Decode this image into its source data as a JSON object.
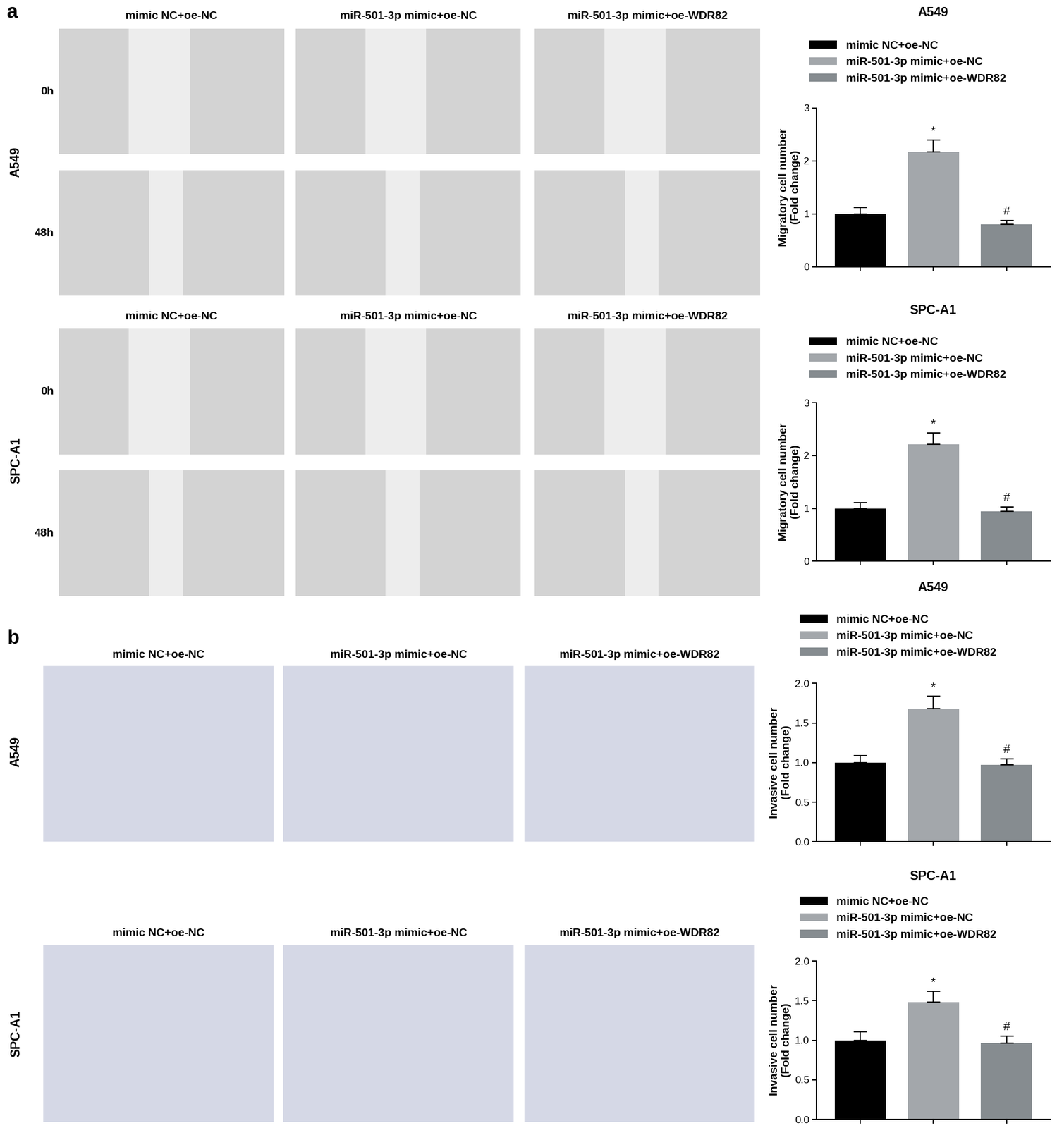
{
  "figure_panels": [
    {
      "label": "a",
      "groups": [
        {
          "cell_line": "A549",
          "columns": [
            "mimic NC+oe-NC",
            "miR-501-3p mimic+oe-NC",
            "miR-501-3p mimic+oe-WDR82"
          ],
          "rows": [
            "0h",
            "48h"
          ]
        },
        {
          "cell_line": "SPC-A1",
          "columns": [
            "mimic NC+oe-NC",
            "miR-501-3p mimic+oe-NC",
            "miR-501-3p mimic+oe-WDR82"
          ],
          "rows": [
            "0h",
            "48h"
          ]
        }
      ]
    },
    {
      "label": "b",
      "groups": [
        {
          "cell_line": "A549",
          "columns": [
            "mimic NC+oe-NC",
            "miR-501-3p mimic+oe-NC",
            "miR-501-3p mimic+oe-WDR82"
          ]
        },
        {
          "cell_line": "SPC-A1",
          "columns": [
            "mimic NC+oe-NC",
            "miR-501-3p mimic+oe-NC",
            "miR-501-3p mimic+oe-WDR82"
          ]
        }
      ]
    }
  ],
  "chart_data": [
    {
      "type": "bar",
      "title": "A549",
      "y_label": "Migratory cell number\n(Fold change)",
      "categories": [
        "mimic NC+oe-NC",
        "miR-501-3p mimic+oe-NC",
        "miR-501-3p mimic+oe-WDR82"
      ],
      "values": [
        1.0,
        2.17,
        0.8
      ],
      "errors": [
        0.12,
        0.22,
        0.08
      ],
      "annotations": [
        null,
        "*",
        "#"
      ],
      "colors": [
        "#000000",
        "#a3a7ab",
        "#868c90"
      ],
      "ylim": [
        0,
        3
      ],
      "yticks": [
        0,
        1,
        2,
        3
      ],
      "legend": "upper left",
      "tick_labels": "y"
    },
    {
      "type": "bar",
      "title": "SPC-A1",
      "y_label": "Migratory cell number\n(Fold change)",
      "categories": [
        "mimic NC+oe-NC",
        "miR-501-3p mimic+oe-NC",
        "miR-501-3p mimic+oe-WDR82"
      ],
      "values": [
        1.0,
        2.21,
        0.94
      ],
      "errors": [
        0.11,
        0.22,
        0.09
      ],
      "annotations": [
        null,
        "*",
        "#"
      ],
      "colors": [
        "#000000",
        "#a3a7ab",
        "#868c90"
      ],
      "ylim": [
        0,
        3
      ],
      "yticks": [
        0,
        1,
        2,
        3
      ],
      "legend": "upper left",
      "tick_labels": "y"
    },
    {
      "type": "bar",
      "title": "A549",
      "y_label": "Invasive cell number\n(Fold change)",
      "categories": [
        "mimic NC+oe-NC",
        "miR-501-3p mimic+oe-NC",
        "miR-501-3p mimic+oe-WDR82"
      ],
      "values": [
        1.0,
        1.68,
        0.97
      ],
      "errors": [
        0.09,
        0.16,
        0.08
      ],
      "annotations": [
        null,
        "*",
        "#"
      ],
      "colors": [
        "#000000",
        "#a3a7ab",
        "#868c90"
      ],
      "ylim": [
        0,
        2
      ],
      "yticks": [
        {
          "value": 0,
          "label": "0.0"
        },
        0.5,
        {
          "value": 1,
          "label": "1.0"
        },
        1.5,
        {
          "value": 2,
          "label": "2.0"
        }
      ],
      "legend": "upper left",
      "tick_labels": "y"
    },
    {
      "type": "bar",
      "title": "SPC-A1",
      "y_label": "Invasive cell number\n(Fold change)",
      "categories": [
        "mimic NC+oe-NC",
        "miR-501-3p mimic+oe-NC",
        "miR-501-3p mimic+oe-WDR82"
      ],
      "values": [
        1.0,
        1.48,
        0.96
      ],
      "errors": [
        0.11,
        0.14,
        0.09
      ],
      "annotations": [
        null,
        "*",
        "#"
      ],
      "colors": [
        "#000000",
        "#a3a7ab",
        "#868c90"
      ],
      "ylim": [
        0,
        2
      ],
      "yticks": [
        {
          "value": 0,
          "label": "0.0"
        },
        0.5,
        {
          "value": 1,
          "label": "1.0"
        },
        1.5,
        {
          "value": 2,
          "label": "2.0"
        }
      ],
      "legend": "upper left",
      "tick_labels": "y"
    }
  ]
}
